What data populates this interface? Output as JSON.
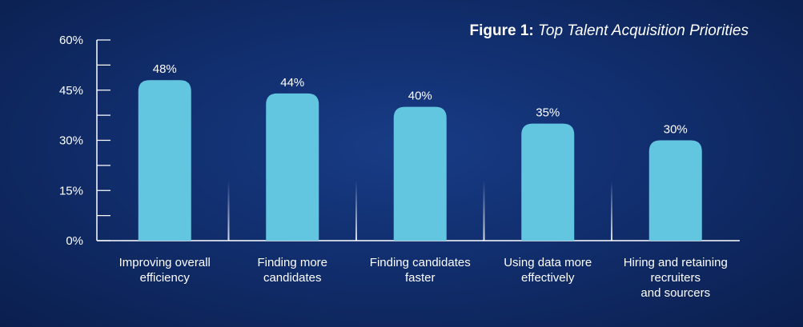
{
  "title": {
    "prefix": "Figure 1:",
    "text": "Top Talent Acquisition Priorities"
  },
  "colors": {
    "bar": "#62c6e1",
    "axis": "#ffffff",
    "background": "#112e6e"
  },
  "chart_data": {
    "type": "bar",
    "categories": [
      [
        "Improving overall",
        "efficiency"
      ],
      [
        "Finding more",
        "candidates"
      ],
      [
        "Finding candidates",
        "faster"
      ],
      [
        "Using data more",
        "effectively"
      ],
      [
        "Hiring and retaining",
        "recruiters",
        "and sourcers"
      ]
    ],
    "values": [
      48,
      44,
      40,
      35,
      30
    ],
    "value_labels": [
      "48%",
      "44%",
      "40%",
      "35%",
      "30%"
    ],
    "ylim": [
      0,
      60
    ],
    "yticks": [
      0,
      15,
      30,
      45,
      60
    ],
    "ytick_labels": [
      "0%",
      "15%",
      "30%",
      "45%",
      "60%"
    ],
    "minor_ticks": [
      7.5,
      22.5,
      37.5,
      52.5
    ],
    "grid": false,
    "xlabel": "",
    "ylabel": ""
  }
}
